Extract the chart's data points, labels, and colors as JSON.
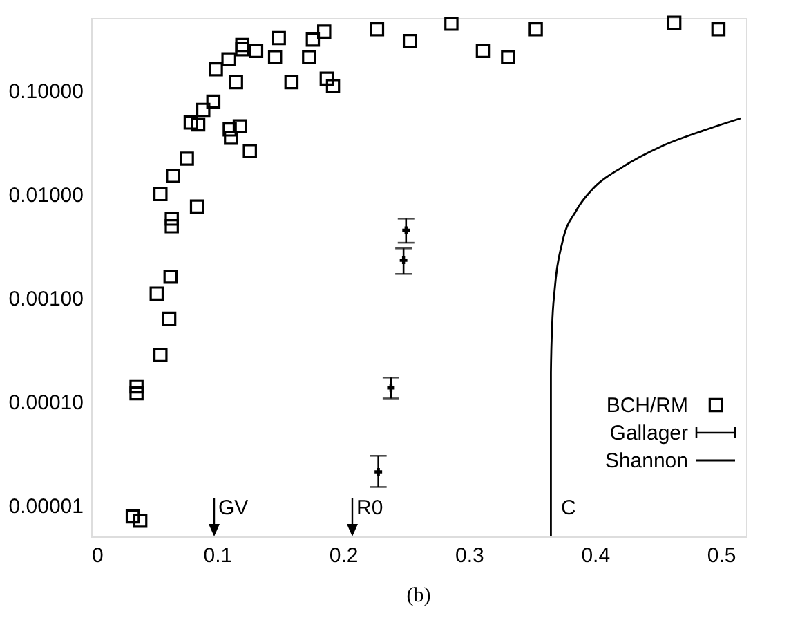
{
  "chart_data": {
    "type": "scatter",
    "title": "(b)",
    "log": "y",
    "grid": false,
    "legend": "bottom right",
    "xlim": [
      0,
      0.52
    ],
    "ylim": [
      5e-06,
      0.5
    ],
    "xticks": [
      0,
      0.1,
      0.2,
      0.3,
      0.4,
      0.5
    ],
    "tick_labels": true,
    "yticks": [
      {
        "value": 0.1,
        "label": "0.10000"
      },
      {
        "value": 0.01,
        "label": "0.01000"
      },
      {
        "value": 0.001,
        "label": "0.00100"
      },
      {
        "value": 0.0001,
        "label": "0.00010"
      },
      {
        "value": 1e-05,
        "label": "0.00001"
      }
    ],
    "series": [
      {
        "name": "BCH/RM",
        "marker": "square",
        "color": "#000000",
        "x": [
          0.12,
          0.12,
          0.131,
          0.149,
          0.176,
          0.185,
          0.227,
          0.253,
          0.099,
          0.109,
          0.115,
          0.146,
          0.159,
          0.173,
          0.187,
          0.192,
          0.097,
          0.089,
          0.079,
          0.085,
          0.11,
          0.118,
          0.111,
          0.126,
          0.076,
          0.065,
          0.055,
          0.084,
          0.064,
          0.064,
          0.063,
          0.052,
          0.062,
          0.055,
          0.036,
          0.036,
          0.033,
          0.039,
          0.286,
          0.311,
          0.331,
          0.353,
          0.463,
          0.498
        ],
        "values": [
          0.275,
          0.25,
          0.24,
          0.32,
          0.31,
          0.37,
          0.39,
          0.3,
          0.16,
          0.2,
          0.12,
          0.21,
          0.12,
          0.21,
          0.13,
          0.11,
          0.078,
          0.065,
          0.049,
          0.047,
          0.042,
          0.045,
          0.035,
          0.026,
          0.022,
          0.015,
          0.01,
          0.0076,
          0.0058,
          0.0049,
          0.0016,
          0.0011,
          0.00063,
          0.00028,
          0.00014,
          0.00012,
          7.8e-06,
          7.1e-06,
          0.44,
          0.24,
          0.21,
          0.39,
          0.45,
          0.39
        ]
      },
      {
        "name": "Gallager",
        "marker": "cross",
        "color": "#000000",
        "x": [
          0.25,
          0.248,
          0.238,
          0.228
        ],
        "values": [
          0.0045,
          0.0023,
          0.000135,
          2.1e-05
        ],
        "errors": [
          [
            0.0034,
            0.0058
          ],
          [
            0.0017,
            0.003
          ],
          [
            0.000107,
            0.00017
          ],
          [
            1.5e-05,
            3e-05
          ]
        ]
      },
      {
        "name": "Shannon",
        "type": "line",
        "line_style": "solid",
        "color": "#000000",
        "x": [
          0.365,
          0.365,
          0.366,
          0.368,
          0.374,
          0.385,
          0.399,
          0.421,
          0.453,
          0.486,
          0.516
        ],
        "values": [
          5e-06,
          0.00019,
          0.00054,
          0.0012,
          0.0034,
          0.0069,
          0.0115,
          0.018,
          0.029,
          0.041,
          0.054
        ]
      }
    ],
    "annotations": [
      "GV",
      "R0",
      "C"
    ]
  }
}
